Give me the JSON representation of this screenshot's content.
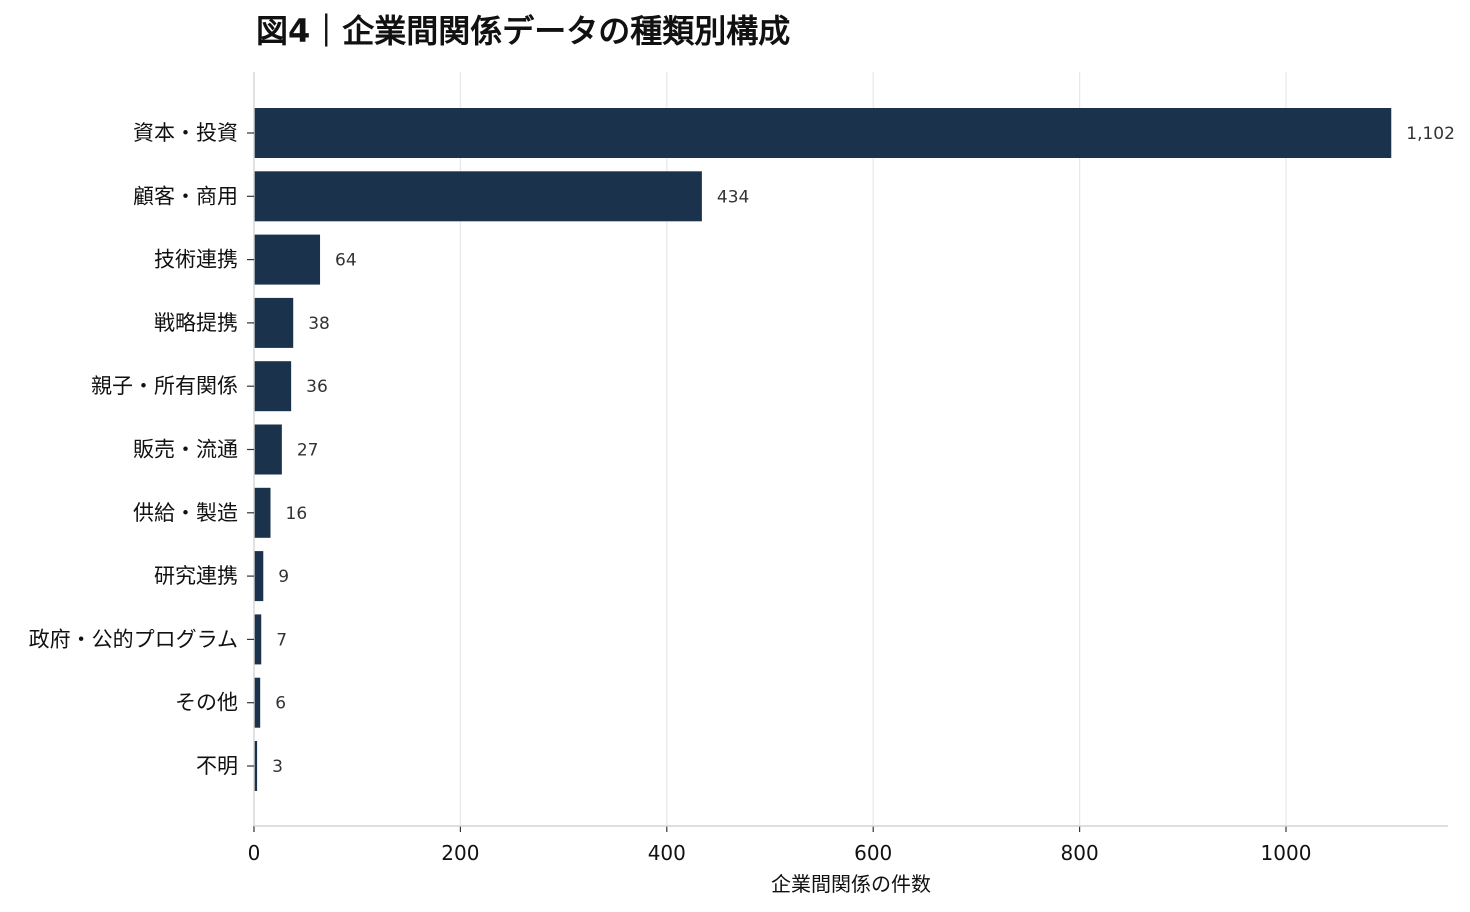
{
  "title": "図4｜企業間関係データの種類別構成",
  "colors": {
    "bar": "#1b324d",
    "grid": "#e6e8eb",
    "axis": "#d4d4d4",
    "text": "#111111",
    "value_text": "#333333"
  },
  "chart_data": {
    "type": "bar",
    "orientation": "horizontal",
    "title": "図4｜企業間関係データの種類別構成",
    "xlabel": "企業間関係の件数",
    "ylabel": "",
    "categories": [
      "資本・投資",
      "顧客・商用",
      "技術連携",
      "戦略提携",
      "親子・所有関係",
      "販売・流通",
      "供給・製造",
      "研究連携",
      "政府・公的プログラム",
      "その他",
      "不明"
    ],
    "values": [
      1102,
      434,
      64,
      38,
      36,
      27,
      16,
      9,
      7,
      6,
      3
    ],
    "value_labels": [
      "1,102",
      "434",
      "64",
      "38",
      "36",
      "27",
      "16",
      "9",
      "7",
      "6",
      "3"
    ],
    "xlim": [
      0,
      1150
    ],
    "xticks": [
      0,
      200,
      400,
      600,
      800,
      1000
    ],
    "xtick_labels": [
      "0",
      "200",
      "400",
      "600",
      "800",
      "1000"
    ],
    "grid": true,
    "legend": false
  }
}
